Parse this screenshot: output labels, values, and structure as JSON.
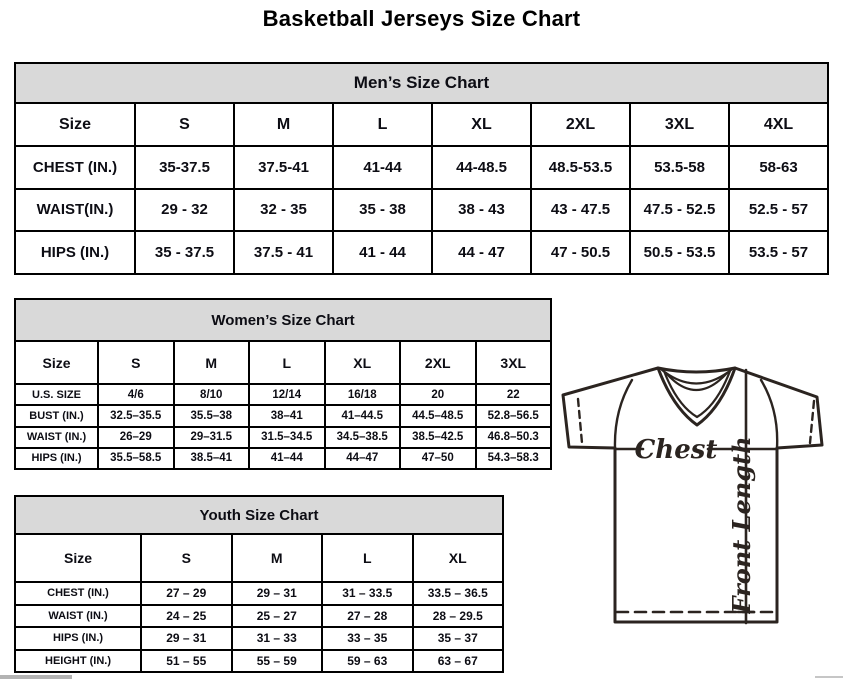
{
  "page_title": "Basketball Jerseys Size Chart",
  "tables": {
    "mens": {
      "title": "Men’s Size Chart",
      "columns": [
        "Size",
        "S",
        "M",
        "L",
        "XL",
        "2XL",
        "3XL",
        "4XL"
      ],
      "rows": [
        {
          "label": "CHEST (IN.)",
          "values": [
            "35-37.5",
            "37.5-41",
            "41-44",
            "44-48.5",
            "48.5-53.5",
            "53.5-58",
            "58-63"
          ]
        },
        {
          "label": "WAIST(IN.)",
          "values": [
            "29 - 32",
            "32 - 35",
            "35 - 38",
            "38 - 43",
            "43 - 47.5",
            "47.5 - 52.5",
            "52.5 - 57"
          ]
        },
        {
          "label": "HIPS (IN.)",
          "values": [
            "35 - 37.5",
            "37.5 - 41",
            "41 - 44",
            "44 - 47",
            "47 - 50.5",
            "50.5 - 53.5",
            "53.5 - 57"
          ]
        }
      ]
    },
    "womens": {
      "title": "Women’s Size Chart",
      "columns": [
        "Size",
        "S",
        "M",
        "L",
        "XL",
        "2XL",
        "3XL"
      ],
      "rows": [
        {
          "label": "U.S. SIZE",
          "values": [
            "4/6",
            "8/10",
            "12/14",
            "16/18",
            "20",
            "22"
          ]
        },
        {
          "label": "BUST (IN.)",
          "values": [
            "32.5–35.5",
            "35.5–38",
            "38–41",
            "41–44.5",
            "44.5–48.5",
            "52.8–56.5"
          ]
        },
        {
          "label": "WAIST (IN.)",
          "values": [
            "26–29",
            "29–31.5",
            "31.5–34.5",
            "34.5–38.5",
            "38.5–42.5",
            "46.8–50.3"
          ]
        },
        {
          "label": "HIPS (IN.)",
          "values": [
            "35.5–58.5",
            "38.5–41",
            "41–44",
            "44–47",
            "47–50",
            "54.3–58.3"
          ]
        }
      ]
    },
    "youth": {
      "title": "Youth Size Chart",
      "columns": [
        "Size",
        "S",
        "M",
        "L",
        "XL"
      ],
      "rows": [
        {
          "label": "CHEST (IN.)",
          "values": [
            "27 – 29",
            "29 – 31",
            "31 – 33.5",
            "33.5 – 36.5"
          ]
        },
        {
          "label": "WAIST (IN.)",
          "values": [
            "24 – 25",
            "25 – 27",
            "27 – 28",
            "28 – 29.5"
          ]
        },
        {
          "label": "HIPS (IN.)",
          "values": [
            "29 – 31",
            "31 – 33",
            "33 – 35",
            "35 – 37"
          ]
        },
        {
          "label": "HEIGHT (IN.)",
          "values": [
            "51 – 55",
            "55 – 59",
            "59 – 63",
            "63 – 67"
          ]
        }
      ]
    }
  },
  "diagram": {
    "chest_label": "Chest",
    "front_length_label": "Front Length",
    "line_color": "#2b2420"
  },
  "colors": {
    "band_bg": "#d9d9d9",
    "grid": "#000000",
    "text": "#0d0d14",
    "scrollbar_thumb": "#b3b3b3"
  }
}
